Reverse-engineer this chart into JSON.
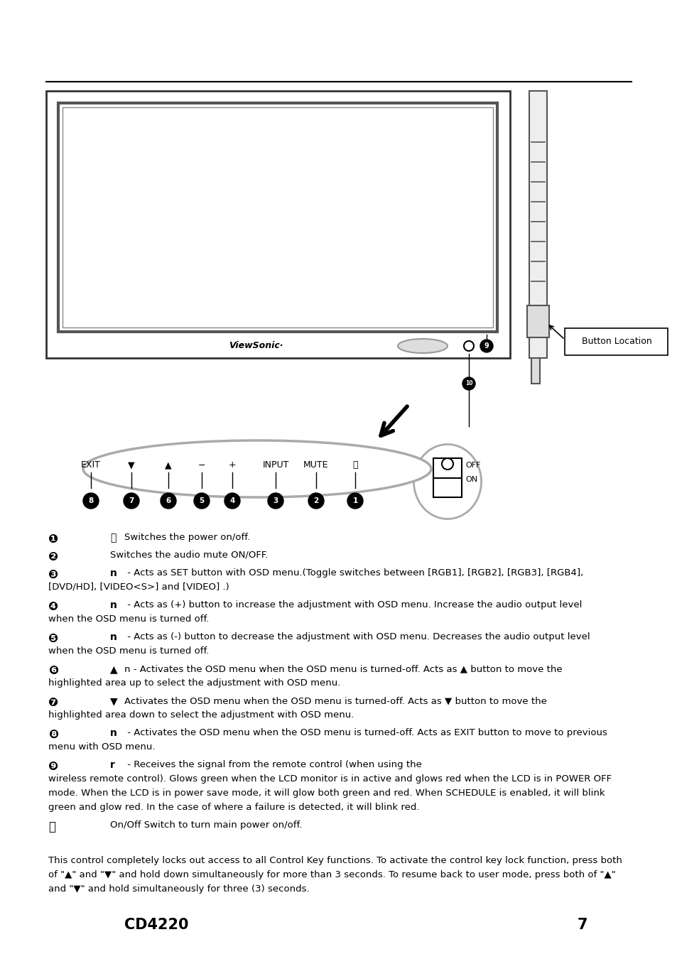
{
  "bg_color": "#ffffff",
  "text_color": "#000000",
  "page_number": "7",
  "model": "CD4220",
  "items": [
    {
      "num": "1",
      "symbol": "⏻",
      "line1": "Switches the power on/off.",
      "line2": ""
    },
    {
      "num": "2",
      "symbol": "",
      "line1": "Switches the audio mute ON/OFF.",
      "line2": ""
    },
    {
      "num": "3",
      "symbol": "n",
      "line1": " - Acts as SET button with OSD menu.(Toggle switches between [RGB1], [RGB2], [RGB3], [RGB4],",
      "line2": "[DVD/HD], [VIDEO<S>] and [VIDEO] .)"
    },
    {
      "num": "4",
      "symbol": "n",
      "line1": " - Acts as (+) button to increase the adjustment with OSD menu. Increase the audio output level",
      "line2": "when the OSD menu is turned off."
    },
    {
      "num": "5",
      "symbol": "n",
      "line1": " - Acts as (-) button to decrease the adjustment with OSD menu. Decreases the audio output level",
      "line2": "when the OSD menu is turned off."
    },
    {
      "num": "6",
      "symbol": "▲",
      "line1": "n - Activates the OSD menu when the OSD menu is turned-off. Acts as ▲ button to move the",
      "line2": "highlighted area up to select the adjustment with OSD menu."
    },
    {
      "num": "7",
      "symbol": "▼",
      "line1": "Activates the OSD menu when the OSD menu is turned-off. Acts as ▼ button to move the",
      "line2": "highlighted area down to select the adjustment with OSD menu."
    },
    {
      "num": "8",
      "symbol": "n",
      "line1": " - Activates the OSD menu when the OSD menu is turned-off. Acts as EXIT button to move to previous",
      "line2": "menu with OSD menu."
    },
    {
      "num": "9",
      "symbol": "r",
      "line1": " - Receives the signal from the remote control (when using the",
      "line2": "wireless remote control). Glows green when the LCD monitor is in active and glows red when the LCD is in POWER OFF",
      "line3": "mode. When the LCD is in power save mode, it will glow both green and red. When SCHEDULE is enabled, it will blink",
      "line4": "green and glow red. In the case of where a failure is detected, it will blink red."
    },
    {
      "num": "10",
      "symbol": "",
      "line1": "On/Off Switch to turn main power on/off.",
      "line2": ""
    }
  ],
  "footer_note": "This control completely locks out access to all Control Key functions. To activate the control key lock function, press both\nof \"▲\" and \"▼\" and hold down simultaneously for more than 3 seconds. To resume back to user mode, press both of \"▲\"\nand \"▼\" and hold simultaneously for three (3) seconds.",
  "btn_labels": [
    "EXIT",
    "▼",
    "▲",
    "−",
    "+",
    "INPUT",
    "MUTE",
    "⏻"
  ],
  "btn_nums": [
    "8",
    "7",
    "6",
    "5",
    "4",
    "3",
    "2",
    "1"
  ]
}
